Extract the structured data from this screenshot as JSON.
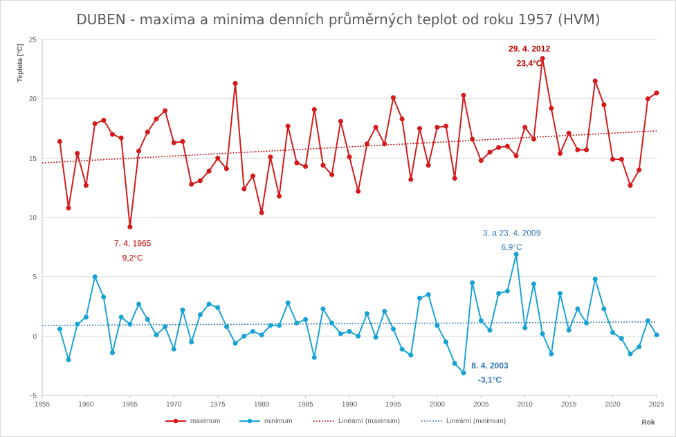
{
  "chart_data": {
    "type": "line",
    "title": "DUBEN - maxima a minima denních průměrných teplot od roku 1957 (HVM)",
    "ylabel": "Teplota [°C]",
    "xlabel": "Rok",
    "xlim": [
      1955,
      2025
    ],
    "ylim": [
      -5,
      25
    ],
    "x_ticks": [
      "1955",
      "1960",
      "1965",
      "1970",
      "1975",
      "1980",
      "1985",
      "1990",
      "1995",
      "2000",
      "2005",
      "2010",
      "2015",
      "2020",
      "2025"
    ],
    "y_ticks": [
      "-5",
      "0",
      "5",
      "10",
      "15",
      "20",
      "25"
    ],
    "grid": true,
    "legend_position": "bottom",
    "x": [
      1957,
      1958,
      1959,
      1960,
      1961,
      1962,
      1963,
      1964,
      1965,
      1966,
      1967,
      1968,
      1969,
      1970,
      1971,
      1972,
      1973,
      1974,
      1975,
      1976,
      1977,
      1978,
      1979,
      1980,
      1981,
      1982,
      1983,
      1984,
      1985,
      1986,
      1987,
      1988,
      1989,
      1990,
      1991,
      1992,
      1993,
      1994,
      1995,
      1996,
      1997,
      1998,
      1999,
      2000,
      2001,
      2002,
      2003,
      2004,
      2005,
      2006,
      2007,
      2008,
      2009,
      2010,
      2011,
      2012,
      2013,
      2014,
      2015,
      2016,
      2017,
      2018,
      2019,
      2020,
      2021,
      2022,
      2023,
      2024,
      2025
    ],
    "series": [
      {
        "name": "maximum",
        "color": "#d41a1a",
        "values": [
          16.4,
          10.8,
          15.4,
          12.7,
          17.9,
          18.2,
          17.0,
          16.7,
          9.2,
          15.6,
          17.2,
          18.3,
          19.0,
          16.3,
          16.4,
          12.8,
          13.1,
          13.9,
          15.0,
          14.1,
          21.3,
          12.4,
          13.5,
          10.4,
          15.1,
          11.8,
          17.7,
          14.6,
          14.3,
          19.1,
          14.4,
          13.6,
          18.1,
          15.1,
          12.2,
          16.2,
          17.6,
          16.2,
          20.1,
          18.3,
          13.2,
          17.5,
          14.4,
          17.6,
          17.7,
          13.3,
          20.3,
          16.6,
          14.8,
          15.5,
          15.9,
          16.0,
          15.2,
          17.6,
          16.6,
          23.4,
          19.2,
          15.4,
          17.1,
          15.7,
          15.7,
          21.5,
          19.5,
          14.9,
          14.9,
          12.7,
          14.0,
          20.0,
          20.5
        ]
      },
      {
        "name": "minimum",
        "color": "#19a3d4",
        "values": [
          0.6,
          -2.0,
          1.0,
          1.6,
          5.0,
          3.3,
          -1.4,
          1.6,
          1.0,
          2.7,
          1.4,
          0.1,
          0.8,
          -1.1,
          2.2,
          -0.5,
          1.8,
          2.7,
          2.4,
          0.8,
          -0.6,
          0.0,
          0.4,
          0.1,
          0.9,
          0.9,
          2.8,
          1.1,
          1.4,
          -1.8,
          2.3,
          1.1,
          0.2,
          0.4,
          0.0,
          1.9,
          -0.1,
          2.1,
          0.6,
          -1.1,
          -1.6,
          3.2,
          3.5,
          0.9,
          -0.5,
          -2.3,
          -3.1,
          4.5,
          1.3,
          0.5,
          3.6,
          3.8,
          6.9,
          0.7,
          4.4,
          0.2,
          -1.5,
          3.6,
          0.5,
          2.3,
          1.1,
          4.8,
          2.3,
          0.3,
          -0.2,
          -1.5,
          -0.9,
          1.3,
          0.1
        ]
      }
    ],
    "trendlines": [
      {
        "name": "Lineární (maximum)",
        "color": "#c00000",
        "start": [
          1955,
          14.6
        ],
        "end": [
          2025,
          17.3
        ]
      },
      {
        "name": "Lineární (minimum)",
        "color": "#2e75b6",
        "start": [
          1955,
          0.9
        ],
        "end": [
          2025,
          1.2
        ]
      }
    ],
    "annotations": [
      {
        "line1": "29. 4. 2012",
        "line2": "23,4°C",
        "color": "#c00000",
        "bold": true,
        "x": 2010.5,
        "y1": 24.2,
        "y2": 23.0
      },
      {
        "line1": "7. 4. 1965",
        "line2": "9,2°C",
        "color": "#c00000",
        "bold": false,
        "x": 1965.3,
        "y1": 7.8,
        "y2": 6.6
      },
      {
        "line1": "3. a 23. 4. 2009",
        "line2": "6,9°C",
        "color": "#2e75b6",
        "bold": false,
        "x": 2008.5,
        "y1": 8.7,
        "y2": 7.5
      },
      {
        "line1": "8. 4. 2003",
        "line2": "-3,1°C",
        "color": "#2e75b6",
        "bold": true,
        "x": 2006.0,
        "y1": -2.5,
        "y2": -3.7
      }
    ],
    "legend": {
      "maximum": "maximum",
      "minimum": "minimum",
      "trend_max": "Lineární (maximum)",
      "trend_min": "Lineární (minimum)"
    }
  }
}
